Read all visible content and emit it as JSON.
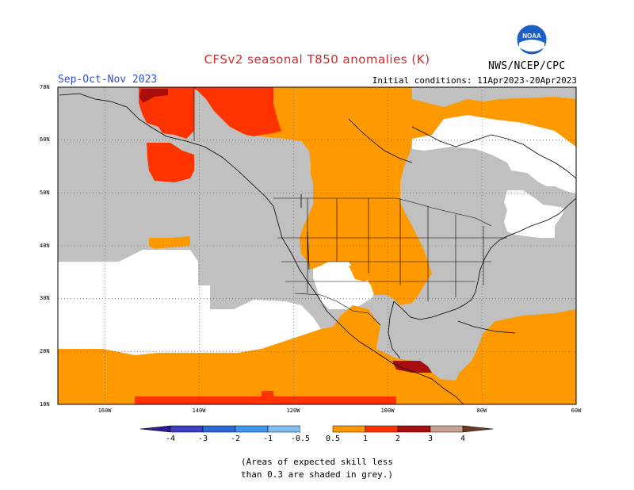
{
  "title": "CFSv2 seasonal T850 anomalies (K)",
  "season": "Sep-Oct-Nov 2023",
  "initial_conditions": "Initial conditions: 11Apr2023-20Apr2023",
  "agency": "NWS/NCEP/CPC",
  "logo_text": "NOAA",
  "latitude_labels": [
    "70N",
    "60N",
    "50N",
    "40N",
    "30N",
    "20N",
    "10N"
  ],
  "longitude_labels": [
    "160W",
    "140W",
    "120W",
    "100W",
    "80W",
    "60W"
  ],
  "colorbar": {
    "labels": [
      "-4",
      "-3",
      "-2",
      "-1",
      "-0.5",
      "0.5",
      "1",
      "2",
      "3",
      "4"
    ],
    "colors": {
      "lt_-4": "#2b1b8f",
      "-4_-3": "#3d3ec0",
      "-3_-2": "#2b68d6",
      "-2_-1": "#3f96ee",
      "-1_-0.5": "#7fbff5",
      "-0.5_0.5": "#ffffff",
      "0.5_1": "#ff9900",
      "1_2": "#ff3300",
      "2_3": "#a80e0e",
      "3_4": "#c9a090",
      "gt_4": "#6e3a24"
    }
  },
  "low_skill_color": "#c0c0c0",
  "note_lines": [
    "(Areas of expected skill less",
    "than 0.3 are shaded in grey.)"
  ]
}
